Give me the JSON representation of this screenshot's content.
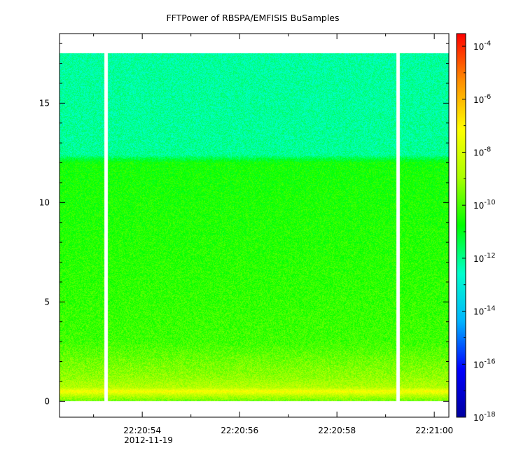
{
  "chart_data": {
    "type": "heatmap",
    "title": "FFTPower of RBSPA/EMFISIS  BuSamples",
    "xlabel": "",
    "ylabel": "",
    "x_date_label": "2012-11-19",
    "x_tick_labels": [
      "22:20:54",
      "22:20:56",
      "22:20:58",
      "22:21:00"
    ],
    "x_tick_values_s": [
      54,
      56,
      58,
      60
    ],
    "xlim_s": [
      52.3,
      60.3
    ],
    "ylim": [
      -0.8,
      18.5
    ],
    "y_tick_values": [
      0,
      5,
      10,
      15
    ],
    "y_tick_labels": [
      "0",
      "5",
      "10",
      "15"
    ],
    "data_y_range": [
      0,
      17.5
    ],
    "data_gaps_s": [
      53.25,
      59.25
    ],
    "colorbar": {
      "scale": "log",
      "range": [
        1e-18,
        0.0003
      ],
      "tick_base": "10",
      "tick_exponents": [
        "-4",
        "-6",
        "-8",
        "-10",
        "-12",
        "-14",
        "-16",
        "-18"
      ],
      "colors": [
        "#0000a0",
        "#0000ff",
        "#00b4ff",
        "#00ffcc",
        "#00ff00",
        "#aaff00",
        "#ffff00",
        "#ff9000",
        "#ff0000"
      ]
    },
    "spectrum_profile": [
      {
        "y": 0.0,
        "log10_power": -9.7
      },
      {
        "y": 0.3,
        "log10_power": -8.6
      },
      {
        "y": 0.5,
        "log10_power": -7.2
      },
      {
        "y": 0.7,
        "log10_power": -8.7
      },
      {
        "y": 1.2,
        "log10_power": -9.2
      },
      {
        "y": 2.0,
        "log10_power": -9.6
      },
      {
        "y": 3.0,
        "log10_power": -10.1
      },
      {
        "y": 6.0,
        "log10_power": -10.3
      },
      {
        "y": 10.0,
        "log10_power": -10.5
      },
      {
        "y": 12.0,
        "log10_power": -10.6
      },
      {
        "y": 12.4,
        "log10_power": -12.1
      },
      {
        "y": 17.5,
        "log10_power": -12.2
      }
    ],
    "grid": false,
    "legend": "none"
  }
}
